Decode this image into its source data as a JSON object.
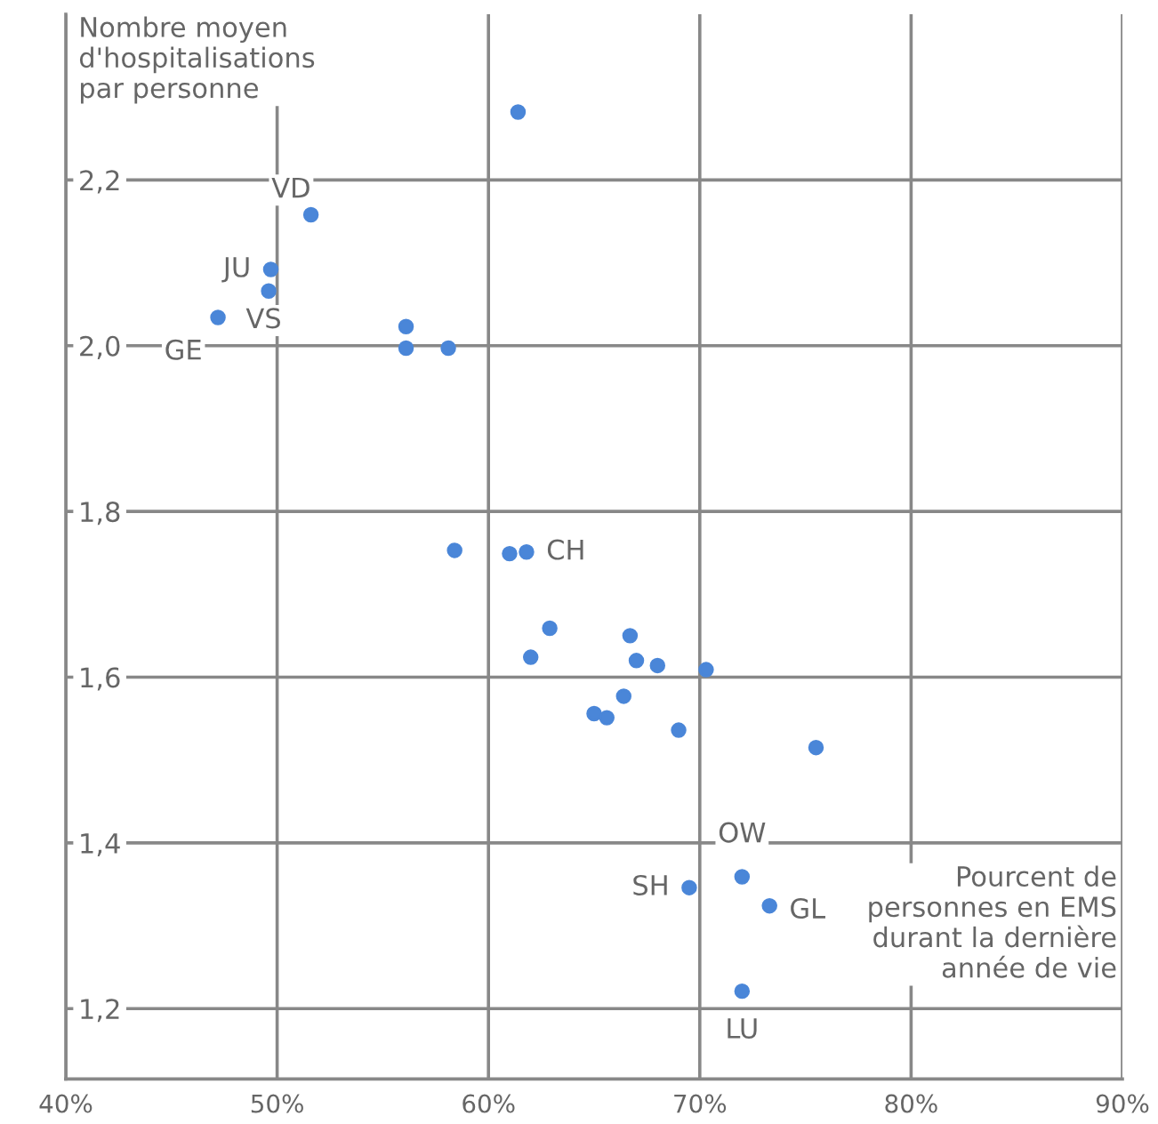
{
  "chart_data": {
    "type": "scatter",
    "xlabel": "Pourcent de\npersonnes en EMS\ndurant la dernière\nannée de vie",
    "ylabel": "Nombre moyen\nd'hospitalisations\npar personne",
    "series": [
      {
        "color": "#4a86d8",
        "x": [
          61.4,
          51.6,
          49.7,
          49.6,
          47.2,
          56.1,
          56.1,
          58.1,
          58.4,
          61.0,
          61.8,
          62.9,
          62.0,
          66.7,
          67.0,
          68.0,
          70.3,
          66.4,
          65.0,
          65.6,
          69.0,
          75.5,
          72.0,
          69.5,
          73.3,
          72.0
        ],
        "values": [
          2.282,
          2.158,
          2.092,
          2.066,
          2.034,
          2.023,
          1.997,
          1.997,
          1.753,
          1.749,
          1.751,
          1.659,
          1.624,
          1.65,
          1.62,
          1.614,
          1.609,
          1.577,
          1.556,
          1.551,
          1.536,
          1.515,
          1.359,
          1.346,
          1.324,
          1.221
        ]
      }
    ],
    "annotations": [
      {
        "text": "VD",
        "x": 51.6,
        "y": 2.158
      },
      {
        "text": "JU",
        "x": 49.7,
        "y": 2.092
      },
      {
        "text": "VS",
        "x": 49.6,
        "y": 2.066
      },
      {
        "text": "GE",
        "x": 47.2,
        "y": 2.034
      },
      {
        "text": "CH",
        "x": 61.8,
        "y": 1.751
      },
      {
        "text": "OW",
        "x": 72.0,
        "y": 1.359
      },
      {
        "text": "SH",
        "x": 69.5,
        "y": 1.346
      },
      {
        "text": "GL",
        "x": 73.3,
        "y": 1.324
      },
      {
        "text": "LU",
        "x": 72.0,
        "y": 1.221
      }
    ],
    "xlim": [
      40,
      90
    ],
    "ylim": [
      1.115,
      2.4
    ],
    "xticks": [
      {
        "value": 40,
        "label": "40%"
      },
      {
        "value": 50,
        "label": "50%"
      },
      {
        "value": 60,
        "label": "60%"
      },
      {
        "value": 70,
        "label": "70%"
      },
      {
        "value": 80,
        "label": "80%"
      },
      {
        "value": 90,
        "label": "90%"
      }
    ],
    "yticks": [
      {
        "value": 1.2,
        "label": "1,2"
      },
      {
        "value": 1.4,
        "label": "1,4"
      },
      {
        "value": 1.6,
        "label": "1,6"
      },
      {
        "value": 1.8,
        "label": "1,8"
      },
      {
        "value": 2.0,
        "label": "2,0"
      },
      {
        "value": 2.2,
        "label": "2,2"
      }
    ],
    "grid": true,
    "marker": "circle",
    "legend": false
  }
}
